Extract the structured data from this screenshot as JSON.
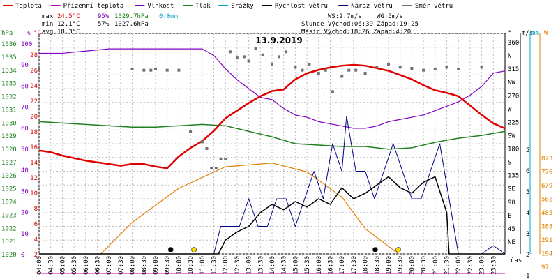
{
  "chart_data": {
    "type": "line",
    "title": "13.9.2019",
    "legend": [
      {
        "label": "Teplota",
        "color": "#e00000"
      },
      {
        "label": "Přízemní teplota",
        "color": "#c000c0"
      },
      {
        "label": "Vlhkost",
        "color": "#8000c0"
      },
      {
        "label": "Tlak",
        "color": "#208020"
      },
      {
        "label": "Srážky",
        "color": "#00a0d0"
      },
      {
        "label": "Rychlost větru",
        "color": "#000000"
      },
      {
        "label": "Náraz větru",
        "color": "#000080"
      },
      {
        "label": "Směr větru",
        "color": "#707070"
      }
    ],
    "stats": {
      "max_label": "max",
      "max_temp": "24.5°C",
      "max_hum": "95%",
      "max_press": "1029.7hPa",
      "max_rain": "0.0mm",
      "min_label": "min",
      "min_temp": "12.1°C",
      "min_hum": "57%",
      "min_press": "1027.6hPa",
      "avg_label": "avg",
      "avg_temp": "18.3°C",
      "ws": "WS:2.7m/s",
      "wg": "WG:5m/s",
      "sun": "Slunce Východ:06:39  Západ:19:25",
      "moon": "Měsíc  Východ:18:26  Západ:4:20"
    },
    "axes": {
      "hpa_label": "hPa",
      "pct_label": "%",
      "c_label": "°C",
      "deg_label": "°",
      "ms_label": "m/s",
      "mm_label": "mm",
      "w_label": "W",
      "time_label": "čas",
      "hpa_ticks": [
        "1036",
        "1035",
        "1034",
        "1033",
        "1032",
        "1031",
        "1030",
        "1029",
        "1028",
        "1027",
        "1026",
        "1025",
        "1024",
        "1023",
        "1022",
        "1021",
        "1020"
      ],
      "pct_ticks": [
        "100",
        "90",
        "80",
        "70",
        "60",
        "50",
        "40",
        "30",
        "20",
        "10",
        "0"
      ],
      "c_ticks": [
        "28",
        "26",
        "24",
        "22",
        "20",
        "18",
        "16",
        "14",
        "12",
        "10",
        "8",
        "6",
        "4",
        "2"
      ],
      "dir_ticks": [
        "360",
        "N",
        "315",
        "NW",
        "270",
        "W",
        "225",
        "SW",
        "180",
        "S",
        "135",
        "SE",
        "90",
        "E",
        "45",
        "NE"
      ],
      "ms_ticks": [
        "5",
        "6",
        "5",
        "4",
        "3",
        "2",
        "1"
      ],
      "w_ticks": [
        "873",
        "776",
        "679",
        "582",
        "485",
        "388",
        "291",
        "194",
        "97"
      ],
      "time_ticks": [
        "04:00",
        "04:30",
        "05:00",
        "05:30",
        "06:00",
        "06:30",
        "07:00",
        "07:30",
        "08:00",
        "08:30",
        "09:00",
        "09:30",
        "10:00",
        "10:30",
        "11:00",
        "11:30",
        "12:00",
        "12:30",
        "13:00",
        "13:30",
        "14:00",
        "14:30",
        "15:00",
        "15:30",
        "16:00",
        "16:30",
        "17:00",
        "17:30",
        "18:00",
        "18:30",
        "19:00",
        "19:30",
        "20:00",
        "20:30",
        "21:00",
        "21:30",
        "22:00",
        "22:30",
        "23:00",
        "23:30"
      ],
      "hpa_range": [
        1020,
        1036
      ],
      "pct_range": [
        0,
        100
      ],
      "c_range": [
        2,
        28
      ],
      "ms_range": [
        0,
        6
      ],
      "w_range": [
        0,
        873
      ],
      "deg_range": [
        0,
        360
      ]
    },
    "series": [
      {
        "name": "Teplota",
        "unit": "°C",
        "x": [
          0,
          0.5,
          1,
          1.5,
          2,
          2.5,
          3,
          3.5,
          4,
          4.5,
          5,
          5.5,
          6,
          6.5,
          7,
          7.5,
          8,
          8.5,
          9,
          9.5,
          10,
          10.5,
          11,
          11.5,
          12,
          12.5,
          13,
          13.5,
          14,
          14.5,
          15,
          15.5,
          16,
          16.5,
          17,
          17.5,
          18,
          18.5,
          19,
          19.5,
          20
        ],
        "values": [
          14.2,
          14.0,
          13.6,
          13.3,
          13.0,
          12.8,
          12.6,
          12.4,
          12.6,
          12.6,
          12.3,
          12.1,
          13.5,
          14.5,
          15.3,
          16.5,
          18.0,
          18.9,
          19.8,
          20.6,
          21.2,
          21.4,
          22.6,
          23.3,
          23.7,
          24.0,
          24.2,
          24.3,
          24.2,
          23.9,
          23.6,
          23.1,
          22.6,
          21.9,
          21.3,
          21.0,
          20.6,
          19.5,
          18.4,
          17.4,
          16.8
        ]
      },
      {
        "name": "Vlhkost",
        "unit": "%",
        "x": [
          0,
          1,
          2,
          3,
          4,
          4.5,
          5,
          5.5,
          6,
          6.5,
          7,
          7.5,
          8,
          8.5,
          9,
          9.5,
          10,
          10.5,
          11,
          11.5,
          12,
          12.5,
          13,
          13.5,
          14,
          14.5,
          15,
          15.5,
          16,
          16.5,
          17,
          17.5,
          18,
          18.5,
          19,
          19.5,
          20
        ],
        "values": [
          91,
          91,
          92,
          93,
          93,
          93,
          93,
          93,
          93,
          93,
          93,
          90,
          84,
          79,
          75,
          71,
          70,
          66,
          63,
          62,
          60,
          59,
          58,
          57,
          57,
          58,
          60,
          61,
          62,
          63,
          65,
          67,
          69,
          72,
          76,
          82,
          83
        ]
      },
      {
        "name": "Tlak",
        "unit": "hPa",
        "x": [
          0,
          1,
          2,
          3,
          4,
          5,
          6,
          7,
          8,
          9,
          10,
          11,
          12,
          13,
          14,
          15,
          16,
          17,
          18,
          19,
          20
        ],
        "values": [
          1029.6,
          1029.5,
          1029.4,
          1029.3,
          1029.2,
          1029.2,
          1029.3,
          1029.4,
          1029.3,
          1028.9,
          1028.5,
          1028.0,
          1027.9,
          1027.8,
          1027.8,
          1027.6,
          1027.7,
          1028.1,
          1028.4,
          1028.6,
          1028.9
        ]
      },
      {
        "name": "Rychlost větru",
        "unit": "m/s",
        "x": [
          0,
          7.7,
          8,
          8.5,
          9,
          9.5,
          10,
          10.5,
          11,
          11.5,
          12,
          12.5,
          13,
          13.5,
          14,
          14.5,
          15,
          15.5,
          16,
          16.5,
          17,
          17.5,
          17.6,
          20
        ],
        "values": [
          0,
          0,
          0.5,
          0.8,
          1.0,
          1.5,
          1.8,
          1.6,
          1.9,
          1.7,
          2.0,
          1.8,
          2.4,
          2.0,
          2.2,
          2.5,
          2.8,
          2.4,
          2.2,
          2.6,
          2.8,
          1.5,
          0,
          0
        ]
      },
      {
        "name": "Náraz větru",
        "unit": "m/s",
        "x": [
          0,
          7.5,
          7.8,
          8.2,
          8.6,
          9,
          9.4,
          9.8,
          10.2,
          10.6,
          11,
          11.4,
          11.8,
          12.2,
          12.6,
          13,
          13.2,
          13.6,
          14,
          14.4,
          14.8,
          15.2,
          15.6,
          16,
          16.4,
          16.8,
          17.2,
          17.6,
          18,
          19,
          19.5,
          20
        ],
        "values": [
          0,
          0,
          1,
          1,
          1,
          2,
          1,
          1,
          2,
          2,
          1,
          2,
          3,
          2,
          4,
          3,
          5,
          3,
          3,
          2,
          3,
          4,
          3,
          2,
          2,
          3,
          4,
          2,
          0,
          0,
          0.3,
          0
        ]
      },
      {
        "name": "Směr větru",
        "unit": "°",
        "x": [
          0,
          4,
          4.5,
          4.8,
          5,
          5.5,
          6,
          6.5,
          7,
          7.2,
          7.4,
          7.6,
          7.8,
          8,
          8.2,
          8.5,
          8.8,
          9,
          9.3,
          9.6,
          10,
          10.3,
          10.6,
          11,
          11.3,
          11.6,
          12,
          12.3,
          12.6,
          13,
          13.3,
          13.6,
          14,
          14.5,
          15,
          15.5,
          16,
          16.5,
          17,
          17.5,
          18,
          19,
          20
        ],
        "values": [
          302,
          302,
          300,
          300,
          302,
          300,
          300,
          200,
          183,
          172,
          140,
          140,
          155,
          155,
          330,
          320,
          322,
          315,
          335,
          325,
          310,
          322,
          330,
          305,
          300,
          310,
          295,
          300,
          265,
          290,
          300,
          300,
          295,
          305,
          310,
          305,
          303,
          300,
          302,
          305,
          302,
          305,
          305
        ]
      },
      {
        "name": "Slunce",
        "unit": "W",
        "x": [
          2.65,
          4,
          6,
          8,
          10,
          11.5,
          13,
          14,
          15.43
        ],
        "values": [
          0,
          250,
          520,
          690,
          720,
          650,
          450,
          200,
          0
        ]
      }
    ]
  }
}
